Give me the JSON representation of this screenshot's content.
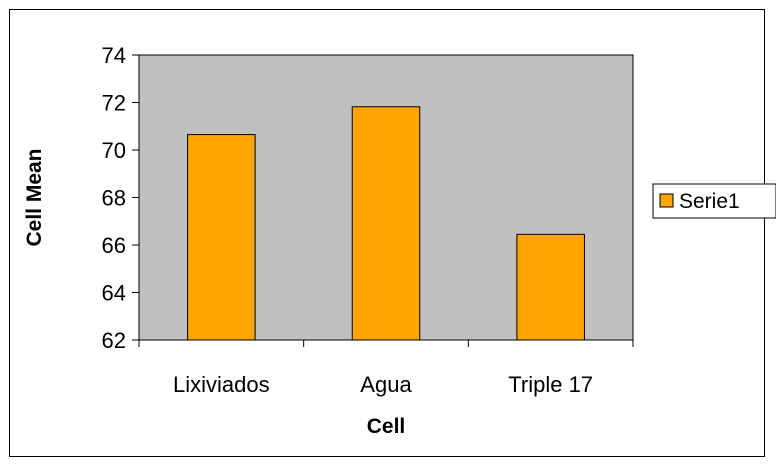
{
  "chart_data": {
    "type": "bar",
    "title": "",
    "xlabel": "Cell",
    "ylabel": "Cell Mean",
    "categories": [
      "Lixiviados",
      "Agua",
      "Triple 17"
    ],
    "series": [
      {
        "name": "Serie1",
        "values": [
          70.65,
          71.82,
          66.45
        ],
        "color": "#FFA500"
      }
    ],
    "ylim": [
      62,
      74
    ],
    "yticks": [
      62,
      64,
      66,
      68,
      70,
      72,
      74
    ],
    "plot_background": "#C0C0C0",
    "bar_border_color": "#000000",
    "grid": false,
    "legend_position": "right"
  }
}
